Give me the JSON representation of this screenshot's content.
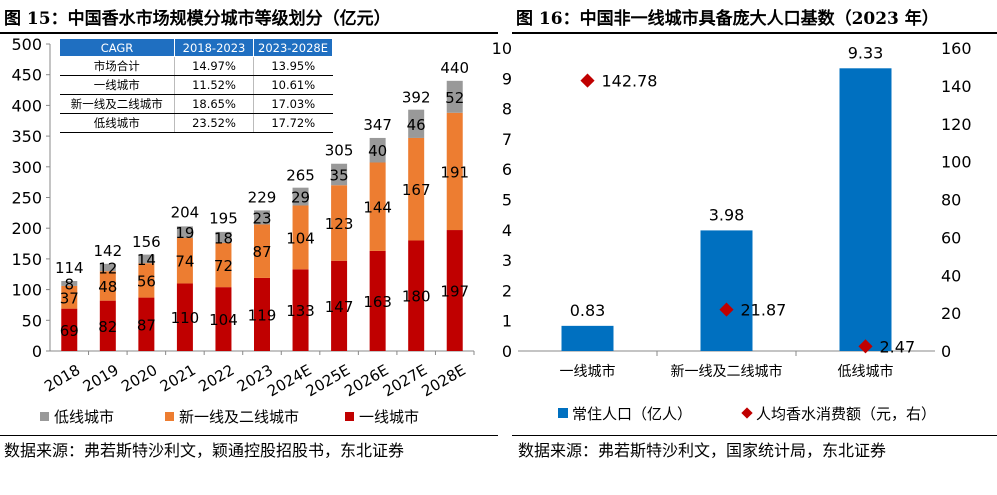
{
  "left": {
    "title": "图 15：中国香水市场规模分城市等级划分（亿元）",
    "source": "数据来源：弗若斯特沙利文，颖通控股招股书，东北证券",
    "cagr_table": {
      "headers": [
        "CAGR",
        "2018-2023",
        "2023-2028E"
      ],
      "rows": [
        [
          "市场合计",
          "14.97%",
          "13.95%"
        ],
        [
          "一线城市",
          "11.52%",
          "10.61%"
        ],
        [
          "新一线及二线城市",
          "18.65%",
          "17.03%"
        ],
        [
          "低线城市",
          "23.52%",
          "17.72%"
        ]
      ]
    }
  },
  "right": {
    "title": "图 16：中国非一线城市具备庞大人口基数（2023 年）",
    "source": "数据来源：弗若斯特沙利文，国家统计局，东北证券"
  },
  "chart_data": [
    {
      "type": "bar",
      "stacked": true,
      "categories": [
        "2018",
        "2019",
        "2020",
        "2021",
        "2022",
        "2023",
        "2024E",
        "2025E",
        "2026E",
        "2027E",
        "2028E"
      ],
      "series": [
        {
          "name": "一线城市",
          "color": "#c00000",
          "values": [
            69,
            82,
            87,
            110,
            104,
            119,
            133,
            147,
            163,
            180,
            197
          ]
        },
        {
          "name": "新一线及二线城市",
          "color": "#ed7d31",
          "values": [
            37,
            48,
            56,
            74,
            72,
            87,
            104,
            123,
            144,
            167,
            191
          ]
        },
        {
          "name": "低线城市",
          "color": "#999999",
          "values": [
            8,
            12,
            14,
            19,
            18,
            23,
            29,
            35,
            40,
            46,
            52
          ]
        }
      ],
      "totals": [
        114,
        142,
        156,
        204,
        195,
        229,
        265,
        305,
        347,
        392,
        440
      ],
      "ylim": [
        0,
        500
      ],
      "yticks": [
        0,
        50,
        100,
        150,
        200,
        250,
        300,
        350,
        400,
        450,
        500
      ],
      "legend": "bottom"
    },
    {
      "type": "bar+scatter",
      "categories": [
        "一线城市",
        "新一线及二线城市",
        "低线城市"
      ],
      "series": [
        {
          "name": "常住人口（亿人）",
          "color": "#0070c0",
          "axis": "left",
          "values": [
            0.83,
            3.98,
            9.33
          ]
        },
        {
          "name": "人均香水消费额（元，右）",
          "color": "#c00000",
          "axis": "right",
          "values": [
            142.78,
            21.87,
            2.47
          ]
        }
      ],
      "ylim": [
        0,
        10
      ],
      "yticks": [
        0,
        1,
        2,
        3,
        4,
        5,
        6,
        7,
        8,
        9,
        10
      ],
      "y2lim": [
        0,
        160
      ],
      "y2ticks": [
        0,
        20,
        40,
        60,
        80,
        100,
        120,
        140,
        160
      ],
      "legend": "bottom"
    }
  ]
}
